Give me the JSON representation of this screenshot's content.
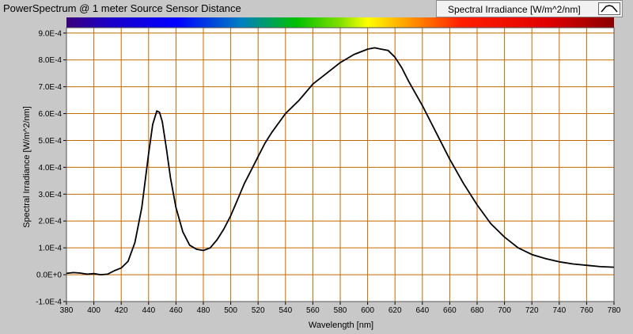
{
  "chart_title": "PowerSpectrum @ 1 meter Source Sensor Distance",
  "legend": {
    "label": "Spectral Irradiance [W/m^2/nm]"
  },
  "colors": {
    "grid": "#c46a00",
    "plot_bg": "#ffffff",
    "line": "#000000",
    "frame": "#c8c8c8"
  },
  "chart_data": {
    "type": "line",
    "title": "PowerSpectrum @ 1 meter Source Sensor Distance",
    "xlabel": "Wavelength [nm]",
    "ylabel": "Spectral Irradiance [W/m^2/nm]",
    "xlim": [
      380,
      780
    ],
    "ylim": [
      -0.0001,
      0.00092
    ],
    "x_ticks": [
      "380",
      "400",
      "420",
      "440",
      "460",
      "480",
      "500",
      "520",
      "540",
      "560",
      "580",
      "600",
      "620",
      "640",
      "660",
      "680",
      "700",
      "720",
      "740",
      "760",
      "780"
    ],
    "y_ticks": [
      "-1.0E-4",
      "0.0E+0",
      "1.0E-4",
      "2.0E-4",
      "3.0E-4",
      "4.0E-4",
      "5.0E-4",
      "6.0E-4",
      "7.0E-4",
      "8.0E-4",
      "9.0E-4"
    ],
    "grid": true,
    "legend_position": "top-right",
    "series": [
      {
        "name": "Spectral Irradiance [W/m^2/nm]",
        "x": [
          380,
          385,
          390,
          395,
          400,
          405,
          410,
          415,
          420,
          425,
          430,
          435,
          440,
          443,
          446,
          448,
          450,
          453,
          456,
          460,
          465,
          470,
          475,
          480,
          485,
          490,
          495,
          500,
          505,
          510,
          515,
          520,
          525,
          530,
          540,
          550,
          560,
          570,
          580,
          590,
          600,
          605,
          610,
          615,
          620,
          625,
          630,
          640,
          650,
          660,
          670,
          680,
          690,
          700,
          710,
          720,
          730,
          740,
          750,
          760,
          770,
          780
        ],
        "y": [
          5e-06,
          8e-06,
          6e-06,
          2e-06,
          4e-06,
          0.0,
          2e-06,
          1.5e-05,
          2.5e-05,
          5e-05,
          0.00012,
          0.00025,
          0.00045,
          0.00056,
          0.00061,
          0.000605,
          0.00057,
          0.00047,
          0.00036,
          0.00025,
          0.00016,
          0.00011,
          9.5e-05,
          9e-05,
          0.0001,
          0.00013,
          0.00017,
          0.00022,
          0.00028,
          0.00034,
          0.00039,
          0.00044,
          0.00049,
          0.00053,
          0.0006,
          0.00065,
          0.00071,
          0.00075,
          0.00079,
          0.00082,
          0.00084,
          0.000845,
          0.00084,
          0.000835,
          0.00081,
          0.00077,
          0.00072,
          0.00063,
          0.00053,
          0.00043,
          0.00034,
          0.00026,
          0.00019,
          0.00014,
          0.0001,
          7.5e-05,
          6e-05,
          4.8e-05,
          4e-05,
          3.5e-05,
          3e-05,
          2.8e-05
        ]
      }
    ]
  }
}
